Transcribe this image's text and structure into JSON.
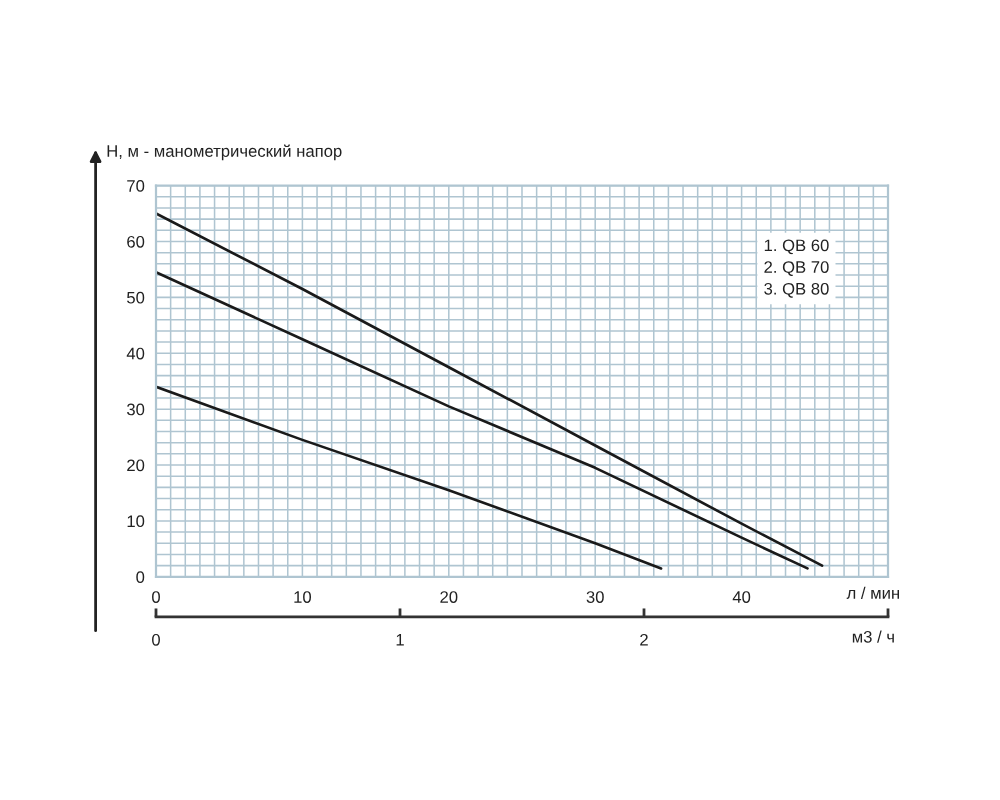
{
  "chart_data": {
    "type": "line",
    "xlabel": "л / мин",
    "ylabel": "H, м - манометрический напор",
    "x2label": "м3 / ч",
    "xlim": [
      0,
      50
    ],
    "xticks": [
      0,
      10,
      20,
      30,
      40
    ],
    "ylim": [
      0,
      70
    ],
    "yticks": [
      0,
      10,
      20,
      30,
      40,
      50,
      60,
      70
    ],
    "x2lim": [
      0,
      3
    ],
    "x2ticks": [
      0,
      1,
      2,
      {
        "value": 3,
        "label": null
      }
    ],
    "grid": true,
    "annotations": [
      "1. QB 60",
      "2. QB 70",
      "3. QB 80"
    ],
    "series": [
      {
        "color": "#1a1a1a",
        "x": [
          0,
          10,
          20,
          30,
          34.5
        ],
        "values": [
          34,
          24.5,
          15.5,
          6,
          1.5
        ]
      },
      {
        "color": "#1a1a1a",
        "x": [
          0,
          10,
          20,
          30,
          40,
          44.5
        ],
        "values": [
          54.5,
          42.5,
          30.5,
          19.5,
          7,
          1.5
        ]
      },
      {
        "color": "#1a1a1a",
        "x": [
          0,
          10,
          20,
          30,
          40,
          45.5
        ],
        "values": [
          65,
          51.5,
          37.5,
          23.5,
          9.5,
          2
        ]
      }
    ]
  }
}
